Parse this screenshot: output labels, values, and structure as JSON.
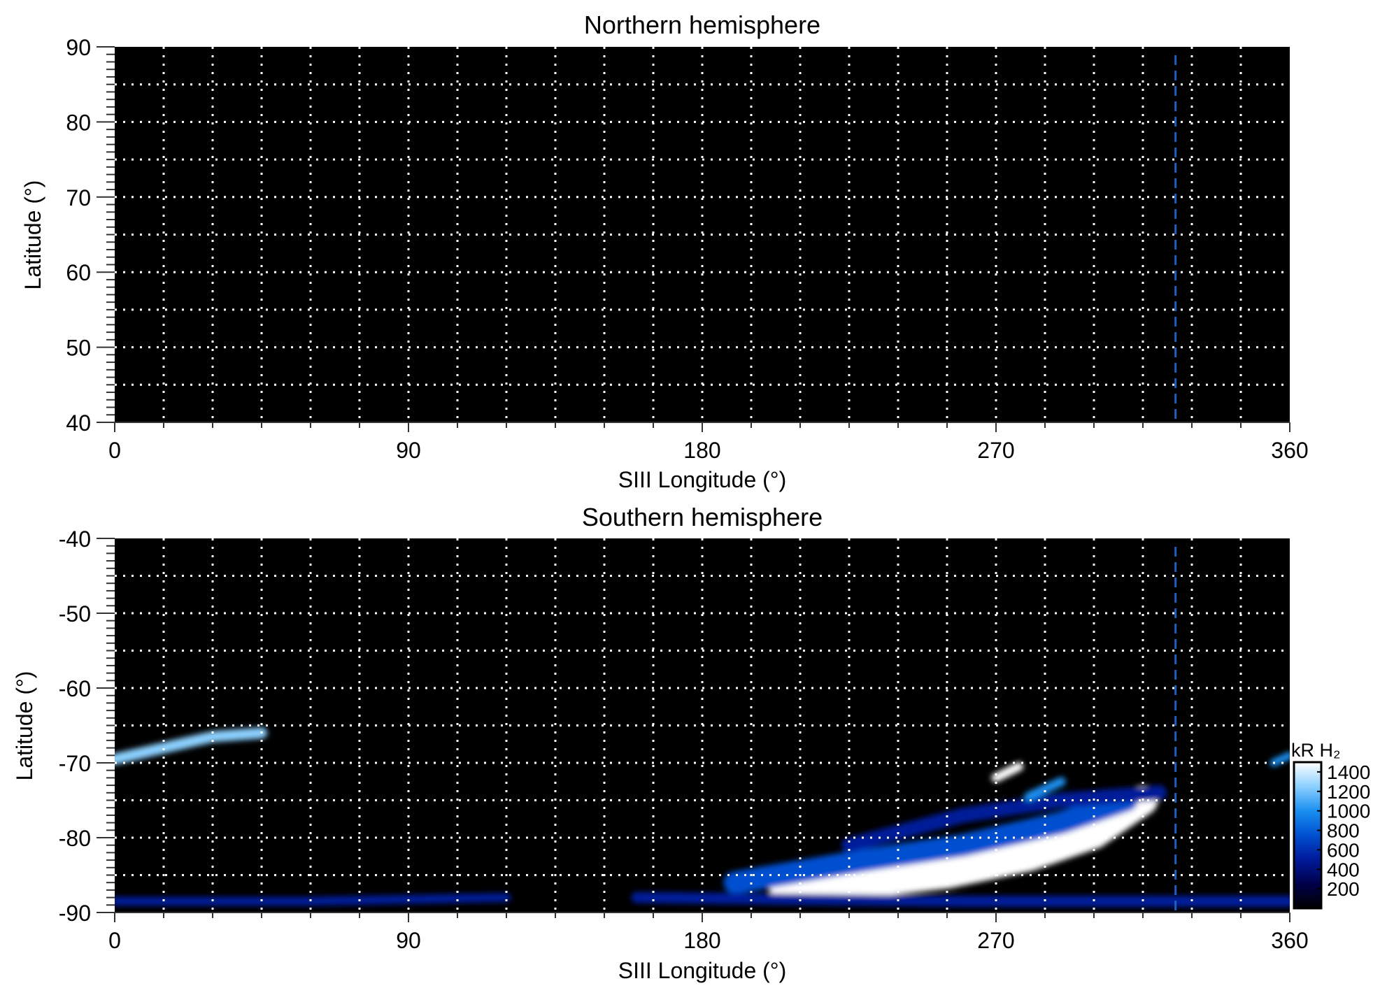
{
  "chart_data": [
    {
      "type": "heatmap",
      "title": "Northern hemisphere",
      "xlabel": "SIII Longitude (°)",
      "ylabel": "Latitude (°)",
      "xlim": [
        0,
        360
      ],
      "ylim": [
        40,
        90
      ],
      "xticks": [
        "0",
        "90",
        "180",
        "270",
        "360"
      ],
      "yticks": [
        "40",
        "50",
        "60",
        "70",
        "80",
        "90"
      ],
      "grid": true,
      "grid_x_step": 15,
      "grid_y_step": 5,
      "marker_longitude": 325,
      "marker_color": "#1f5fbf",
      "features": []
    },
    {
      "type": "heatmap",
      "title": "Southern hemisphere",
      "xlabel": "SIII Longitude (°)",
      "ylabel": "Latitude (°)",
      "xlim": [
        0,
        360
      ],
      "ylim": [
        -90,
        -40
      ],
      "xticks": [
        "0",
        "90",
        "180",
        "270",
        "360"
      ],
      "yticks": [
        "-90",
        "-80",
        "-70",
        "-60",
        "-50",
        "-40"
      ],
      "grid": true,
      "grid_x_step": 15,
      "grid_y_step": 5,
      "marker_longitude": 325,
      "marker_color": "#1f5fbf",
      "features": [
        {
          "points": [
            [
              205,
              -86.5
            ],
            [
              230,
              -86
            ],
            [
              255,
              -84.8
            ],
            [
              280,
              -82.5
            ],
            [
              300,
              -79.5
            ],
            [
              315,
              -75
            ]
          ],
          "intensity": 1500,
          "width": 4
        },
        {
          "points": [
            [
              190,
              -86
            ],
            [
              230,
              -83
            ],
            [
              260,
              -81
            ],
            [
              290,
              -78
            ],
            [
              310,
              -75
            ]
          ],
          "intensity": 700,
          "width": 3
        },
        {
          "points": [
            [
              225,
              -81
            ],
            [
              260,
              -77
            ],
            [
              290,
              -75
            ],
            [
              320,
              -74
            ]
          ],
          "intensity": 400,
          "width": 2
        },
        {
          "points": [
            [
              0,
              -69.5
            ],
            [
              15,
              -68
            ],
            [
              30,
              -66.5
            ],
            [
              45,
              -66
            ]
          ],
          "intensity": 1300,
          "width": 1.5
        },
        {
          "points": [
            [
              270,
              -72
            ],
            [
              277,
              -70.5
            ]
          ],
          "intensity": 1400,
          "width": 1.2
        },
        {
          "points": [
            [
              280,
              -74.5
            ],
            [
              290,
              -72.5
            ]
          ],
          "intensity": 1100,
          "width": 1.2
        },
        {
          "points": [
            [
              0,
              -88.5
            ],
            [
              60,
              -88.5
            ],
            [
              120,
              -88
            ]
          ],
          "intensity": 500,
          "width": 1.2
        },
        {
          "points": [
            [
              160,
              -88
            ],
            [
              260,
              -88.5
            ],
            [
              360,
              -88.5
            ]
          ],
          "intensity": 600,
          "width": 1.5
        },
        {
          "points": [
            [
              355,
              -70
            ],
            [
              360,
              -69
            ]
          ],
          "intensity": 900,
          "width": 1
        }
      ],
      "colorbar": {
        "label": "kR H₂",
        "ticks": [
          "200",
          "400",
          "600",
          "800",
          "1000",
          "1200",
          "1400"
        ],
        "range": [
          0,
          1500
        ],
        "colors": [
          "#000000",
          "#00004a",
          "#001a9a",
          "#0050d0",
          "#1a8ff0",
          "#8cd0ff",
          "#ffffff"
        ]
      }
    }
  ]
}
